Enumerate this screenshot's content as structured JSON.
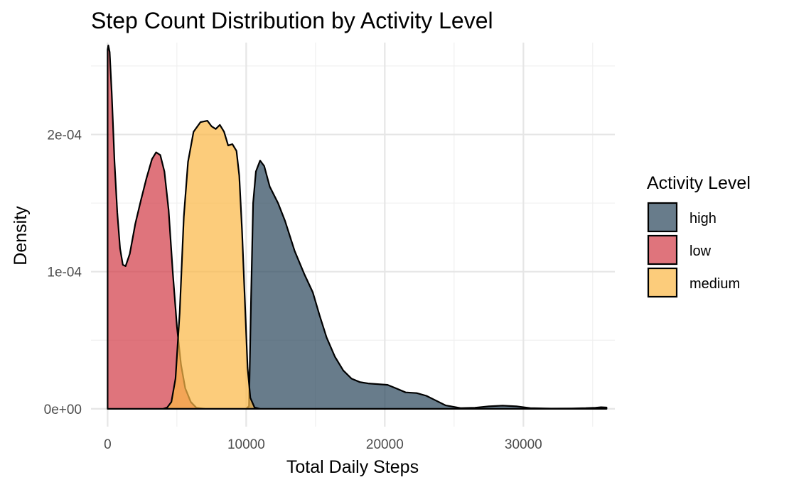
{
  "chart_data": {
    "type": "area",
    "title": "Step Count Distribution by Activity Level",
    "xlabel": "Total Daily Steps",
    "ylabel": "Density",
    "xlim": [
      -1200,
      36600
    ],
    "ylim": [
      -1.3e-05,
      0.000267
    ],
    "x_ticks": [
      0,
      10000,
      20000,
      30000
    ],
    "x_tick_labels": [
      "0",
      "10000",
      "20000",
      "30000"
    ],
    "y_ticks": [
      0,
      0.0001,
      0.0002
    ],
    "y_tick_labels": [
      "0e+00",
      "1e-04",
      "2e-04"
    ],
    "x_minor_gridlines": [
      5000,
      15000,
      25000,
      35000
    ],
    "y_minor_gridlines": [
      5e-05,
      0.00015,
      0.00025
    ],
    "grid": true,
    "legend": {
      "title": "Activity Level",
      "position": "right",
      "entries": [
        "high",
        "low",
        "medium"
      ]
    },
    "series": [
      {
        "name": "high",
        "color": "#2e4a5e",
        "points": [
          [
            10000,
            0
          ],
          [
            10200,
            2e-06
          ],
          [
            10350,
            8e-05
          ],
          [
            10500,
            0.00015
          ],
          [
            10700,
            0.000173
          ],
          [
            11000,
            0.000181
          ],
          [
            11300,
            0.000177
          ],
          [
            11700,
            0.000162
          ],
          [
            12300,
            0.00015
          ],
          [
            12800,
            0.000137
          ],
          [
            13500,
            0.000115
          ],
          [
            14200,
            9.8e-05
          ],
          [
            14800,
            8.5e-05
          ],
          [
            15300,
            6.8e-05
          ],
          [
            15800,
            5.2e-05
          ],
          [
            16400,
            3.8e-05
          ],
          [
            17000,
            2.8e-05
          ],
          [
            17600,
            2.2e-05
          ],
          [
            18200,
            1.95e-05
          ],
          [
            18800,
            1.85e-05
          ],
          [
            19500,
            1.8e-05
          ],
          [
            20200,
            1.75e-05
          ],
          [
            20800,
            1.5e-05
          ],
          [
            21500,
            1.2e-05
          ],
          [
            22300,
            1.15e-05
          ],
          [
            23000,
            9.5e-06
          ],
          [
            23600,
            6.5e-06
          ],
          [
            24400,
            2.5e-06
          ],
          [
            25500,
            5e-07
          ],
          [
            26500,
            8e-07
          ],
          [
            27500,
            1.8e-06
          ],
          [
            28500,
            2.3e-06
          ],
          [
            29500,
            1.8e-06
          ],
          [
            30500,
            5e-07
          ],
          [
            32000,
            2e-07
          ],
          [
            33500,
            3e-07
          ],
          [
            34500,
            5e-07
          ],
          [
            35200,
            8e-07
          ],
          [
            35600,
            1.2e-06
          ],
          [
            36000,
            1e-06
          ],
          [
            36000,
            0
          ]
        ]
      },
      {
        "name": "low",
        "color": "#d33f49",
        "points": [
          [
            0,
            0
          ],
          [
            0,
            0.000262
          ],
          [
            50,
            0.000265
          ],
          [
            150,
            0.00026
          ],
          [
            300,
            0.00023
          ],
          [
            500,
            0.00018
          ],
          [
            700,
            0.000143
          ],
          [
            900,
            0.000117
          ],
          [
            1100,
            0.000105
          ],
          [
            1300,
            0.000104
          ],
          [
            1600,
            0.000113
          ],
          [
            2000,
            0.000135
          ],
          [
            2400,
            0.000152
          ],
          [
            2800,
            0.000168
          ],
          [
            3200,
            0.000182
          ],
          [
            3500,
            0.000187
          ],
          [
            3800,
            0.000185
          ],
          [
            4100,
            0.000173
          ],
          [
            4400,
            0.000145
          ],
          [
            4700,
            0.0001
          ],
          [
            5000,
            6e-05
          ],
          [
            5300,
            3.2e-05
          ],
          [
            5600,
            1.5e-05
          ],
          [
            6000,
            5e-06
          ],
          [
            6400,
            8e-07
          ],
          [
            7000,
            0
          ]
        ]
      },
      {
        "name": "medium",
        "color": "#fbb948",
        "points": [
          [
            4000,
            0
          ],
          [
            4300,
            1e-06
          ],
          [
            4600,
            5e-06
          ],
          [
            4900,
            2.2e-05
          ],
          [
            5200,
            7e-05
          ],
          [
            5500,
            0.00014
          ],
          [
            5800,
            0.00018
          ],
          [
            6200,
            0.000202
          ],
          [
            6700,
            0.000209
          ],
          [
            7200,
            0.00021
          ],
          [
            7500,
            0.000206
          ],
          [
            7800,
            0.000204
          ],
          [
            8100,
            0.000207
          ],
          [
            8400,
            0.000202
          ],
          [
            8700,
            0.000192
          ],
          [
            9000,
            0.000193
          ],
          [
            9300,
            0.000188
          ],
          [
            9500,
            0.00017
          ],
          [
            9700,
            0.00013
          ],
          [
            9900,
            8e-05
          ],
          [
            10100,
            3e-05
          ],
          [
            10300,
            8e-06
          ],
          [
            10600,
            1e-06
          ],
          [
            11000,
            0
          ]
        ]
      }
    ]
  }
}
